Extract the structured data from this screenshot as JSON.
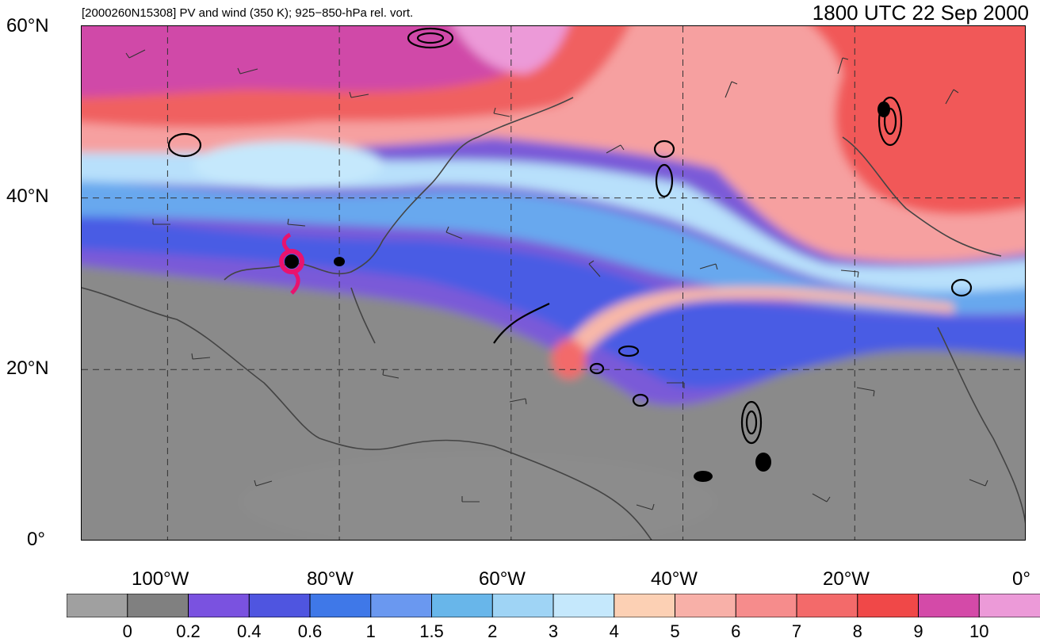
{
  "title": {
    "left": "[2000260N15308] PV and wind (350 K); 925−850-hPa rel. vort.",
    "right": "1800 UTC 22 Sep 2000"
  },
  "lat_labels": [
    "60°N",
    "40°N",
    "20°N",
    "0°"
  ],
  "lon_labels": [
    "100°W",
    "80°W",
    "60°W",
    "40°W",
    "20°W",
    "0°"
  ],
  "colorbar": {
    "labels": [
      "0",
      "0.2",
      "0.4",
      "0.6",
      "1",
      "1.5",
      "2",
      "3",
      "4",
      "5",
      "6",
      "7",
      "8",
      "9",
      "10"
    ],
    "colors": [
      "#a0a0a0",
      "#808080",
      "#7a52e0",
      "#4f55e0",
      "#3f78e8",
      "#6a98f0",
      "#68b6ea",
      "#9fd4f5",
      "#c5e8fc",
      "#fcd0b4",
      "#f8b0a8",
      "#f68c8c",
      "#f36a6a",
      "#f04848",
      "#d44aa8",
      "#ec9ad8"
    ]
  },
  "map": {
    "extent": {
      "lon_min": -110,
      "lon_max": 0,
      "lat_min": 0,
      "lat_max": 60
    },
    "storm_symbol": {
      "lon": -85.5,
      "lat": 31.5,
      "color": "#e8136e",
      "name": "hurricane-icon"
    }
  }
}
